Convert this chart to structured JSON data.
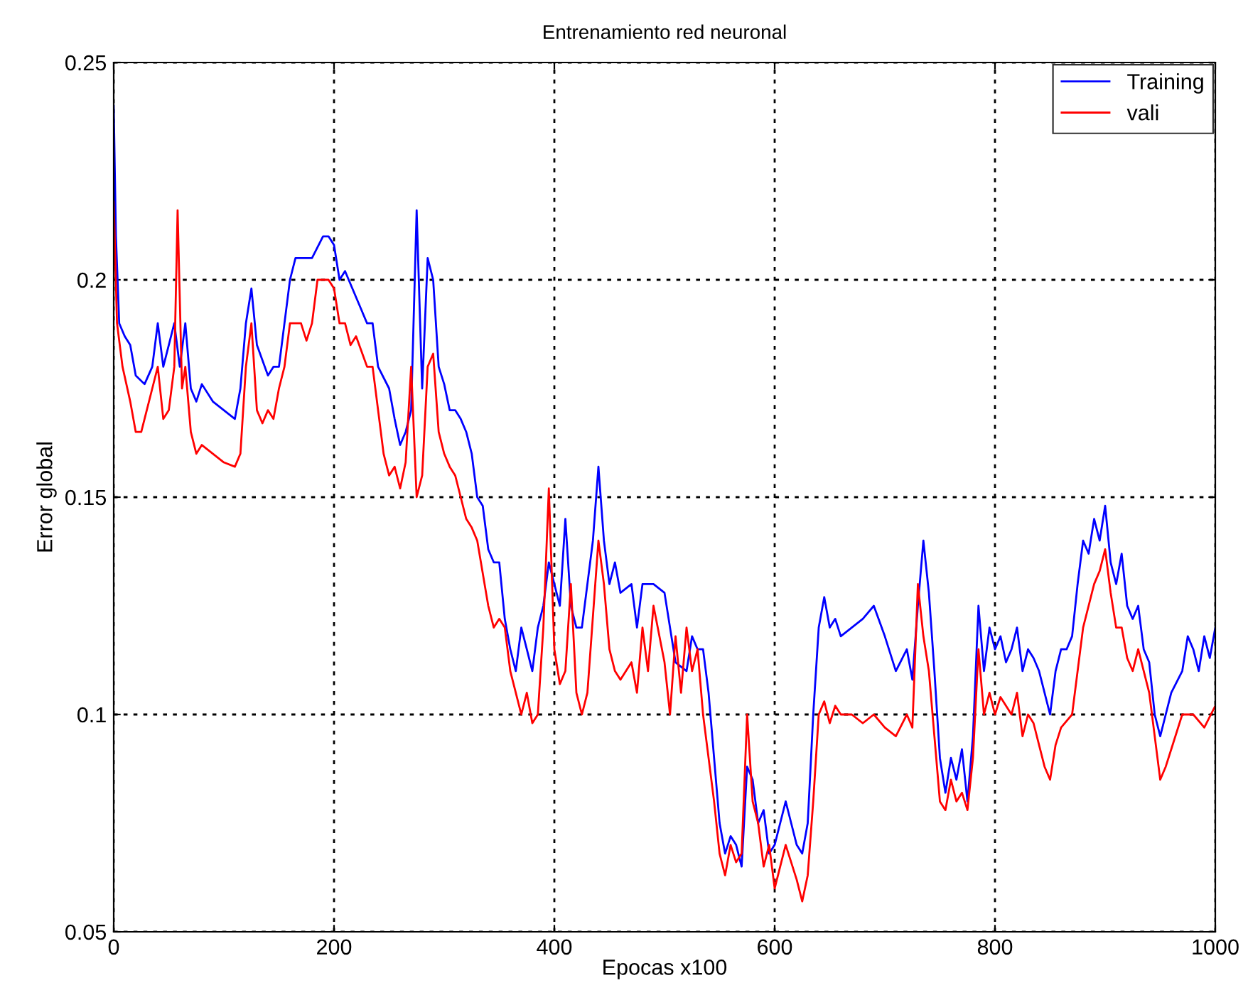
{
  "chart_data": {
    "type": "line",
    "title": "Entrenamiento red neuronal",
    "xlabel": "Epocas x100",
    "ylabel": "Error global",
    "xlim": [
      0,
      1000
    ],
    "ylim": [
      0.05,
      0.25
    ],
    "xticks": [
      0,
      200,
      400,
      600,
      800,
      1000
    ],
    "yticks": [
      0.05,
      0.1,
      0.15,
      0.2,
      0.25
    ],
    "grid": true,
    "legend": "top right",
    "line_style": "solid",
    "series": [
      {
        "name": "Training",
        "color": "#0000ff",
        "x": [
          0,
          2,
          5,
          10,
          15,
          20,
          28,
          35,
          40,
          45,
          50,
          55,
          60,
          65,
          70,
          75,
          80,
          90,
          100,
          110,
          115,
          120,
          125,
          130,
          140,
          145,
          150,
          155,
          160,
          165,
          170,
          180,
          190,
          195,
          200,
          205,
          210,
          220,
          230,
          235,
          240,
          250,
          255,
          260,
          265,
          270,
          275,
          280,
          285,
          290,
          295,
          300,
          305,
          310,
          315,
          320,
          325,
          330,
          335,
          340,
          345,
          350,
          355,
          360,
          365,
          370,
          375,
          380,
          385,
          390,
          395,
          400,
          405,
          410,
          415,
          420,
          425,
          430,
          435,
          440,
          445,
          450,
          455,
          460,
          470,
          475,
          480,
          490,
          500,
          505,
          510,
          520,
          525,
          530,
          535,
          540,
          545,
          550,
          555,
          560,
          565,
          570,
          575,
          580,
          585,
          590,
          595,
          600,
          605,
          610,
          615,
          620,
          625,
          630,
          635,
          640,
          645,
          650,
          655,
          660,
          670,
          680,
          690,
          700,
          710,
          720,
          725,
          730,
          735,
          740,
          745,
          750,
          755,
          760,
          765,
          770,
          775,
          780,
          785,
          790,
          795,
          800,
          805,
          810,
          815,
          820,
          825,
          830,
          835,
          840,
          845,
          850,
          855,
          860,
          865,
          870,
          875,
          880,
          885,
          890,
          895,
          900,
          905,
          910,
          915,
          920,
          925,
          930,
          935,
          940,
          945,
          950,
          955,
          960,
          970,
          975,
          980,
          985,
          990,
          995,
          1000
        ],
        "values": [
          0.24,
          0.21,
          0.19,
          0.187,
          0.185,
          0.178,
          0.176,
          0.18,
          0.19,
          0.18,
          0.185,
          0.19,
          0.18,
          0.19,
          0.175,
          0.172,
          0.176,
          0.172,
          0.17,
          0.168,
          0.175,
          0.19,
          0.198,
          0.185,
          0.178,
          0.18,
          0.18,
          0.19,
          0.2,
          0.205,
          0.205,
          0.205,
          0.21,
          0.21,
          0.208,
          0.2,
          0.202,
          0.196,
          0.19,
          0.19,
          0.18,
          0.175,
          0.168,
          0.162,
          0.165,
          0.17,
          0.216,
          0.175,
          0.205,
          0.2,
          0.18,
          0.176,
          0.17,
          0.17,
          0.168,
          0.165,
          0.16,
          0.15,
          0.148,
          0.138,
          0.135,
          0.135,
          0.122,
          0.115,
          0.11,
          0.12,
          0.115,
          0.11,
          0.12,
          0.125,
          0.135,
          0.13,
          0.125,
          0.145,
          0.125,
          0.12,
          0.12,
          0.13,
          0.14,
          0.157,
          0.14,
          0.13,
          0.135,
          0.128,
          0.13,
          0.12,
          0.13,
          0.13,
          0.128,
          0.12,
          0.112,
          0.11,
          0.118,
          0.115,
          0.115,
          0.105,
          0.09,
          0.075,
          0.068,
          0.072,
          0.07,
          0.065,
          0.088,
          0.085,
          0.075,
          0.078,
          0.068,
          0.07,
          0.075,
          0.08,
          0.075,
          0.07,
          0.068,
          0.075,
          0.1,
          0.12,
          0.127,
          0.12,
          0.122,
          0.118,
          0.12,
          0.122,
          0.125,
          0.118,
          0.11,
          0.115,
          0.108,
          0.125,
          0.14,
          0.128,
          0.11,
          0.09,
          0.082,
          0.09,
          0.085,
          0.092,
          0.08,
          0.095,
          0.125,
          0.11,
          0.12,
          0.115,
          0.118,
          0.112,
          0.115,
          0.12,
          0.11,
          0.115,
          0.113,
          0.11,
          0.105,
          0.1,
          0.11,
          0.115,
          0.115,
          0.118,
          0.13,
          0.14,
          0.137,
          0.145,
          0.14,
          0.148,
          0.135,
          0.13,
          0.137,
          0.125,
          0.122,
          0.125,
          0.115,
          0.112,
          0.1,
          0.095,
          0.1,
          0.105,
          0.11,
          0.118,
          0.115,
          0.11,
          0.118,
          0.113,
          0.12
        ]
      },
      {
        "name": "vali",
        "color": "#ff0000",
        "x": [
          0,
          3,
          8,
          15,
          20,
          25,
          30,
          35,
          40,
          45,
          50,
          55,
          58,
          62,
          65,
          70,
          75,
          80,
          90,
          100,
          110,
          115,
          120,
          125,
          130,
          135,
          140,
          145,
          150,
          155,
          160,
          170,
          175,
          180,
          185,
          195,
          200,
          205,
          210,
          215,
          220,
          230,
          235,
          240,
          245,
          250,
          255,
          260,
          265,
          270,
          275,
          280,
          285,
          290,
          295,
          300,
          305,
          310,
          315,
          320,
          325,
          330,
          340,
          345,
          350,
          355,
          360,
          365,
          370,
          375,
          380,
          385,
          390,
          395,
          400,
          405,
          410,
          415,
          420,
          425,
          430,
          440,
          445,
          450,
          455,
          460,
          465,
          470,
          475,
          480,
          485,
          490,
          500,
          505,
          510,
          515,
          520,
          525,
          530,
          535,
          540,
          545,
          550,
          555,
          560,
          565,
          570,
          575,
          580,
          585,
          590,
          595,
          600,
          605,
          610,
          620,
          625,
          630,
          635,
          640,
          645,
          650,
          655,
          660,
          670,
          680,
          690,
          700,
          710,
          720,
          725,
          730,
          735,
          740,
          745,
          750,
          755,
          760,
          765,
          770,
          775,
          780,
          785,
          790,
          795,
          800,
          805,
          810,
          815,
          820,
          825,
          830,
          835,
          840,
          845,
          850,
          855,
          860,
          870,
          880,
          885,
          890,
          895,
          900,
          905,
          910,
          915,
          920,
          925,
          930,
          940,
          945,
          950,
          955,
          960,
          970,
          980,
          990,
          1000
        ],
        "values": [
          0.218,
          0.19,
          0.18,
          0.172,
          0.165,
          0.165,
          0.17,
          0.175,
          0.18,
          0.168,
          0.17,
          0.18,
          0.216,
          0.175,
          0.18,
          0.165,
          0.16,
          0.162,
          0.16,
          0.158,
          0.157,
          0.16,
          0.18,
          0.19,
          0.17,
          0.167,
          0.17,
          0.168,
          0.175,
          0.18,
          0.19,
          0.19,
          0.186,
          0.19,
          0.2,
          0.2,
          0.198,
          0.19,
          0.19,
          0.185,
          0.187,
          0.18,
          0.18,
          0.17,
          0.16,
          0.155,
          0.157,
          0.152,
          0.158,
          0.18,
          0.15,
          0.155,
          0.18,
          0.183,
          0.165,
          0.16,
          0.157,
          0.155,
          0.15,
          0.145,
          0.143,
          0.14,
          0.125,
          0.12,
          0.122,
          0.12,
          0.11,
          0.105,
          0.1,
          0.105,
          0.098,
          0.1,
          0.12,
          0.152,
          0.115,
          0.107,
          0.11,
          0.13,
          0.105,
          0.1,
          0.105,
          0.14,
          0.13,
          0.115,
          0.11,
          0.108,
          0.11,
          0.112,
          0.105,
          0.12,
          0.11,
          0.125,
          0.112,
          0.1,
          0.118,
          0.105,
          0.12,
          0.11,
          0.115,
          0.1,
          0.09,
          0.08,
          0.068,
          0.063,
          0.07,
          0.066,
          0.068,
          0.1,
          0.08,
          0.075,
          0.065,
          0.07,
          0.06,
          0.065,
          0.07,
          0.062,
          0.057,
          0.063,
          0.08,
          0.1,
          0.103,
          0.098,
          0.102,
          0.1,
          0.1,
          0.098,
          0.1,
          0.097,
          0.095,
          0.1,
          0.097,
          0.13,
          0.118,
          0.11,
          0.095,
          0.08,
          0.078,
          0.085,
          0.08,
          0.082,
          0.078,
          0.09,
          0.115,
          0.1,
          0.105,
          0.1,
          0.104,
          0.102,
          0.1,
          0.105,
          0.095,
          0.1,
          0.098,
          0.093,
          0.088,
          0.085,
          0.093,
          0.097,
          0.1,
          0.12,
          0.125,
          0.13,
          0.133,
          0.138,
          0.128,
          0.12,
          0.12,
          0.113,
          0.11,
          0.115,
          0.105,
          0.095,
          0.085,
          0.088,
          0.092,
          0.1,
          0.1,
          0.097,
          0.102
        ]
      }
    ]
  }
}
